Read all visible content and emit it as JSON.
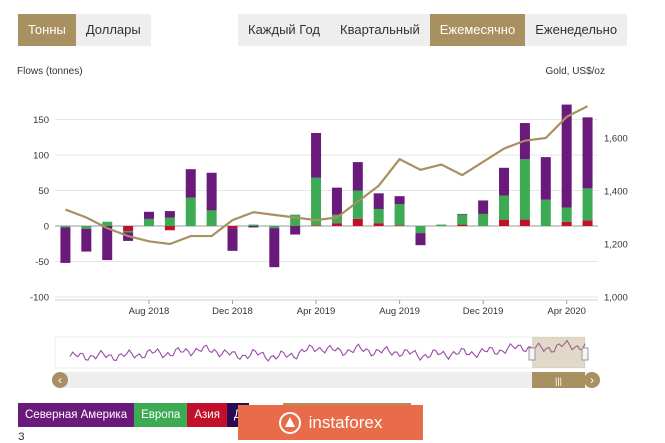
{
  "unit_toggle": {
    "items": [
      "Тонны",
      "Доллары"
    ],
    "active": 0
  },
  "period_toggle": {
    "items": [
      "Каждый Год",
      "Квартальный",
      "Ежемесячно",
      "Еженедельно"
    ],
    "active": 2
  },
  "chart_data": {
    "type": "bar",
    "left_axis_title": "Flows (tonnes)",
    "right_axis_title": "Gold, US$/oz",
    "y_ticks": [
      -100,
      -50,
      0,
      50,
      100,
      150
    ],
    "ylim": [
      -100,
      175
    ],
    "y2_ticks": [
      "1,000",
      "1,200",
      "1,400",
      "1,600"
    ],
    "y2_tick_values": [
      1000,
      1200,
      1400,
      1600
    ],
    "y2lim": [
      1000,
      1700
    ],
    "x_tick_labels": [
      "Aug 2018",
      "Dec 2018",
      "Apr 2019",
      "Aug 2019",
      "Dec 2019",
      "Apr 2020"
    ],
    "x_tick_months": [
      4,
      8,
      12,
      16,
      20,
      24
    ],
    "months": [
      "Apr 2018",
      "May 2018",
      "Jun 2018",
      "Jul 2018",
      "Aug 2018",
      "Sep 2018",
      "Oct 2018",
      "Nov 2018",
      "Dec 2018",
      "Jan 2019",
      "Feb 2019",
      "Mar 2019",
      "Apr 2019",
      "May 2019",
      "Jun 2019",
      "Jul 2019",
      "Aug 2019",
      "Sep 2019",
      "Oct 2019",
      "Nov 2019",
      "Dec 2019",
      "Jan 2020",
      "Feb 2020",
      "Mar 2020",
      "Apr 2020",
      "May 2020"
    ],
    "series": [
      {
        "name": "Северная Америка",
        "color": "#6a1a7a",
        "values": [
          -50,
          -32,
          -48,
          -12,
          10,
          9,
          40,
          53,
          -32,
          -2,
          -55,
          -12,
          63,
          38,
          40,
          22,
          11,
          -17,
          0,
          1,
          19,
          39,
          51,
          60,
          145,
          100
        ]
      },
      {
        "name": "Европа",
        "color": "#3cab53",
        "values": [
          -2,
          -4,
          6,
          -2,
          10,
          12,
          40,
          22,
          0,
          2,
          -3,
          16,
          67,
          12,
          40,
          20,
          30,
          -10,
          2,
          14,
          17,
          34,
          85,
          37,
          20,
          45
        ]
      },
      {
        "name": "Азия",
        "color": "#c2102c",
        "values": [
          0,
          0,
          0,
          -7,
          0,
          -6,
          0,
          0,
          -3,
          0,
          0,
          0,
          1,
          4,
          10,
          4,
          1,
          0,
          0,
          2,
          0,
          9,
          9,
          0,
          6,
          8
        ]
      },
      {
        "name": "Д",
        "color": "#2a0a50",
        "values": []
      }
    ],
    "gold_price": [
      1330,
      1300,
      1260,
      1230,
      1210,
      1200,
      1230,
      1230,
      1290,
      1320,
      1310,
      1300,
      1290,
      1300,
      1360,
      1420,
      1520,
      1480,
      1500,
      1460,
      1510,
      1560,
      1590,
      1600,
      1680,
      1720
    ],
    "navigator": {
      "months_range": [
        "Apr 2018",
        "May 2020"
      ],
      "selection": [
        0.9,
        1.0
      ],
      "handle_symbol": "|||",
      "left_arrow": "‹",
      "right_arrow": "›"
    }
  },
  "watermark": {
    "text": "instaforex"
  },
  "below_text": "З"
}
